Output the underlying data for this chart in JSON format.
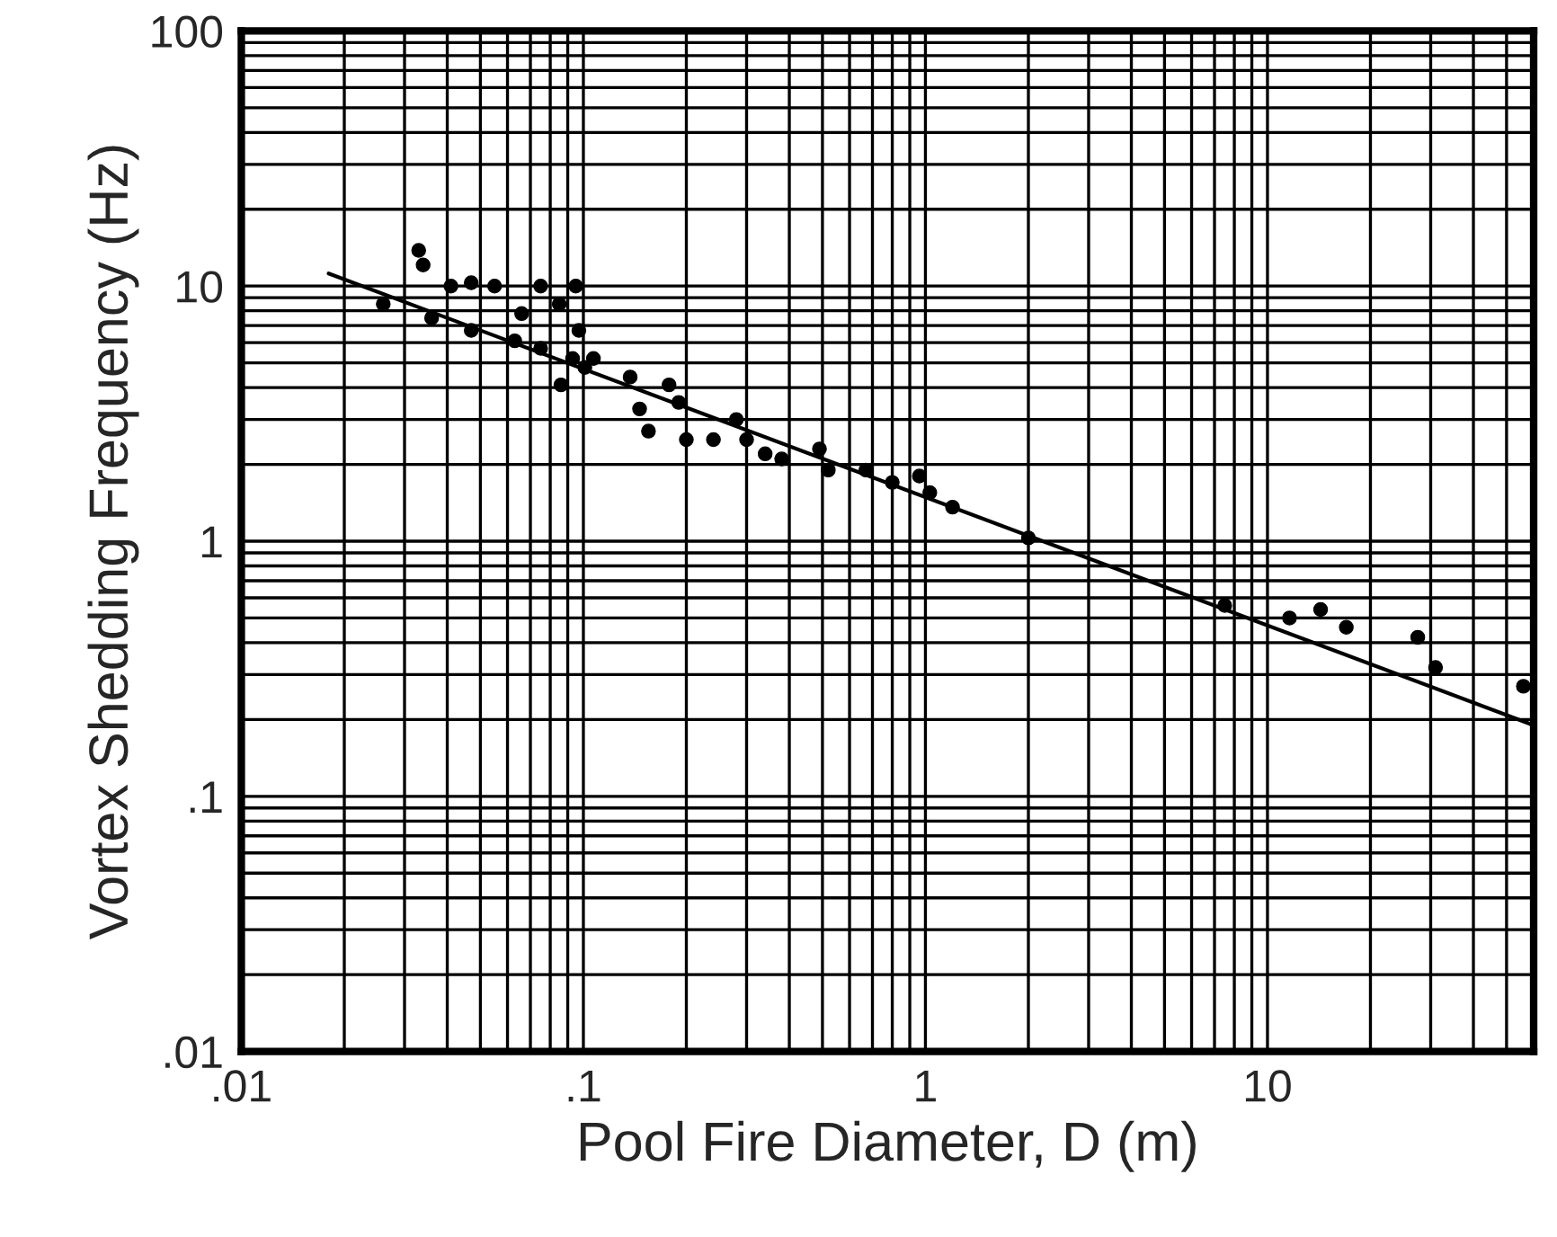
{
  "chart_data": {
    "type": "scatter",
    "xlabel": "Pool Fire Diameter, D (m)",
    "ylabel": "Vortex Shedding Frequency (Hz)",
    "log": "xy",
    "grid": true,
    "marker": "circle",
    "xlim": [
      0.01,
      60
    ],
    "ylim": [
      0.01,
      100
    ],
    "xticks": [
      {
        "value": 0.01,
        "label": ".01"
      },
      {
        "value": 0.1,
        "label": ".1"
      },
      1,
      10
    ],
    "yticks": [
      {
        "value": 0.01,
        "label": ".01"
      },
      {
        "value": 0.1,
        "label": ".1"
      },
      1,
      10,
      100
    ],
    "series": [
      {
        "color": "#000000",
        "x": [
          0.026,
          0.033,
          0.034,
          0.036,
          0.041,
          0.047,
          0.047,
          0.055,
          0.063,
          0.066,
          0.075,
          0.075,
          0.085,
          0.086,
          0.093,
          0.095,
          0.097,
          0.101,
          0.107,
          0.137,
          0.146,
          0.155,
          0.178,
          0.19,
          0.2,
          0.24,
          0.28,
          0.3,
          0.34,
          0.38,
          0.49,
          0.52,
          0.67,
          0.8,
          0.96,
          1.03,
          1.2,
          2.0,
          7.5,
          11.6,
          14.3,
          17,
          27.5,
          31,
          56
        ],
        "values": [
          8.5,
          13.8,
          12.1,
          7.5,
          10,
          10.3,
          6.7,
          10,
          6.1,
          7.8,
          10,
          5.7,
          8.5,
          4.1,
          5.2,
          10,
          6.7,
          4.8,
          5.2,
          4.4,
          3.3,
          2.7,
          4.1,
          3.5,
          2.5,
          2.5,
          3.0,
          2.5,
          2.2,
          2.1,
          2.3,
          1.9,
          1.9,
          1.7,
          1.8,
          1.55,
          1.36,
          1.03,
          0.56,
          0.5,
          0.54,
          0.46,
          0.42,
          0.32,
          0.27
        ]
      },
      {
        "type": "line",
        "color": "#000000",
        "marker": "none",
        "line_style": "solid",
        "x": [
          0.018,
          60
        ],
        "values": [
          11.2,
          0.19
        ]
      }
    ]
  }
}
